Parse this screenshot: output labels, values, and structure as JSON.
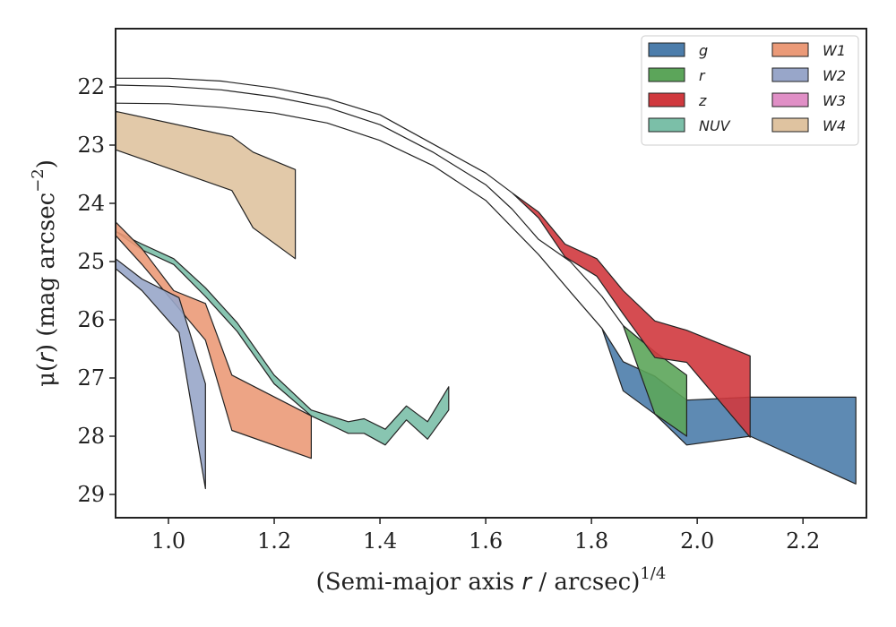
{
  "chart_data": {
    "type": "area",
    "xlabel_main": "(Semi-major axis ",
    "xlabel_var": "r",
    "xlabel_tail": " / arcsec)",
    "xlabel_exp": "1/4",
    "ylabel_mu": "μ(",
    "ylabel_var": "r",
    "ylabel_tail": ") (mag arcsec",
    "ylabel_exp": "−2",
    "ylabel_close": ")",
    "xlim": [
      0.9,
      2.32
    ],
    "ylim": [
      29.4,
      21.0
    ],
    "y_inverted": true,
    "xticks": [
      1.0,
      1.2,
      1.4,
      1.6,
      1.8,
      2.0,
      2.2
    ],
    "xtick_labels": [
      "1.0",
      "1.2",
      "1.4",
      "1.6",
      "1.8",
      "2.0",
      "2.2"
    ],
    "yticks": [
      22,
      23,
      24,
      25,
      26,
      27,
      28,
      29
    ],
    "ytick_labels": [
      "22",
      "23",
      "24",
      "25",
      "26",
      "27",
      "28",
      "29"
    ],
    "legend_position": "top-right",
    "series": [
      {
        "name": "g",
        "color": "#4c7dab",
        "upper": [
          [
            0.9,
            22.28
          ],
          [
            1.0,
            22.29
          ],
          [
            1.1,
            22.35
          ],
          [
            1.2,
            22.45
          ],
          [
            1.3,
            22.62
          ],
          [
            1.4,
            22.92
          ],
          [
            1.5,
            23.35
          ],
          [
            1.6,
            23.95
          ],
          [
            1.7,
            24.88
          ],
          [
            1.76,
            25.52
          ],
          [
            1.82,
            26.15
          ],
          [
            1.86,
            26.72
          ],
          [
            1.92,
            26.97
          ],
          [
            1.98,
            27.38
          ],
          [
            2.1,
            27.33
          ],
          [
            2.3,
            27.33
          ]
        ],
        "lower": [
          [
            0.9,
            22.28
          ],
          [
            1.0,
            22.29
          ],
          [
            1.1,
            22.35
          ],
          [
            1.2,
            22.45
          ],
          [
            1.3,
            22.62
          ],
          [
            1.4,
            22.92
          ],
          [
            1.5,
            23.35
          ],
          [
            1.6,
            23.95
          ],
          [
            1.7,
            24.88
          ],
          [
            1.76,
            25.52
          ],
          [
            1.82,
            26.15
          ],
          [
            1.86,
            27.22
          ],
          [
            1.92,
            27.62
          ],
          [
            1.98,
            28.15
          ],
          [
            2.1,
            28.0
          ],
          [
            2.3,
            28.82
          ]
        ]
      },
      {
        "name": "r",
        "color": "#5ca55a",
        "upper": [
          [
            0.9,
            21.97
          ],
          [
            1.0,
            21.99
          ],
          [
            1.1,
            22.05
          ],
          [
            1.2,
            22.17
          ],
          [
            1.3,
            22.35
          ],
          [
            1.4,
            22.65
          ],
          [
            1.5,
            23.12
          ],
          [
            1.6,
            23.68
          ],
          [
            1.65,
            24.1
          ],
          [
            1.7,
            24.62
          ],
          [
            1.76,
            25.0
          ],
          [
            1.82,
            25.6
          ],
          [
            1.86,
            26.1
          ],
          [
            1.92,
            26.55
          ],
          [
            1.98,
            26.95
          ]
        ],
        "lower": [
          [
            0.9,
            21.97
          ],
          [
            1.0,
            21.99
          ],
          [
            1.1,
            22.05
          ],
          [
            1.2,
            22.17
          ],
          [
            1.3,
            22.35
          ],
          [
            1.4,
            22.65
          ],
          [
            1.5,
            23.12
          ],
          [
            1.6,
            23.68
          ],
          [
            1.65,
            24.1
          ],
          [
            1.7,
            24.62
          ],
          [
            1.76,
            25.0
          ],
          [
            1.82,
            25.6
          ],
          [
            1.86,
            26.1
          ],
          [
            1.92,
            27.62
          ],
          [
            1.98,
            28.0
          ]
        ]
      },
      {
        "name": "z",
        "color": "#d0393e",
        "upper": [
          [
            0.9,
            21.85
          ],
          [
            1.0,
            21.85
          ],
          [
            1.1,
            21.9
          ],
          [
            1.2,
            22.02
          ],
          [
            1.3,
            22.2
          ],
          [
            1.4,
            22.48
          ],
          [
            1.5,
            22.98
          ],
          [
            1.6,
            23.48
          ],
          [
            1.65,
            23.82
          ],
          [
            1.7,
            24.15
          ],
          [
            1.75,
            24.7
          ],
          [
            1.81,
            24.95
          ],
          [
            1.86,
            25.5
          ],
          [
            1.92,
            26.02
          ],
          [
            1.98,
            26.18
          ],
          [
            2.1,
            26.62
          ]
        ],
        "lower": [
          [
            0.9,
            21.85
          ],
          [
            1.0,
            21.85
          ],
          [
            1.1,
            21.9
          ],
          [
            1.2,
            22.02
          ],
          [
            1.3,
            22.2
          ],
          [
            1.4,
            22.48
          ],
          [
            1.5,
            22.98
          ],
          [
            1.6,
            23.48
          ],
          [
            1.65,
            23.82
          ],
          [
            1.7,
            24.25
          ],
          [
            1.75,
            24.92
          ],
          [
            1.81,
            25.25
          ],
          [
            1.86,
            25.9
          ],
          [
            1.92,
            26.65
          ],
          [
            1.98,
            26.73
          ],
          [
            2.1,
            28.02
          ]
        ]
      },
      {
        "name": "NUV",
        "color": "#7bbfa8",
        "upper": [
          [
            0.9,
            24.48
          ],
          [
            0.95,
            24.7
          ],
          [
            1.01,
            24.95
          ],
          [
            1.07,
            25.45
          ],
          [
            1.13,
            26.05
          ],
          [
            1.2,
            26.95
          ],
          [
            1.27,
            27.55
          ],
          [
            1.34,
            27.75
          ],
          [
            1.37,
            27.7
          ],
          [
            1.41,
            27.88
          ],
          [
            1.45,
            27.48
          ],
          [
            1.49,
            27.75
          ],
          [
            1.53,
            27.15
          ]
        ],
        "lower": [
          [
            0.9,
            24.48
          ],
          [
            0.95,
            24.8
          ],
          [
            1.01,
            25.05
          ],
          [
            1.07,
            25.6
          ],
          [
            1.13,
            26.2
          ],
          [
            1.2,
            27.1
          ],
          [
            1.27,
            27.65
          ],
          [
            1.34,
            27.95
          ],
          [
            1.37,
            27.95
          ],
          [
            1.41,
            28.15
          ],
          [
            1.45,
            27.72
          ],
          [
            1.49,
            28.05
          ],
          [
            1.53,
            27.55
          ]
        ]
      },
      {
        "name": "W1",
        "color": "#eb9a78",
        "upper": [
          [
            0.9,
            24.32
          ],
          [
            0.95,
            24.78
          ],
          [
            1.01,
            25.5
          ],
          [
            1.07,
            25.72
          ],
          [
            1.12,
            26.95
          ],
          [
            1.27,
            27.65
          ]
        ],
        "lower": [
          [
            0.9,
            24.55
          ],
          [
            0.95,
            25.05
          ],
          [
            1.01,
            25.7
          ],
          [
            1.07,
            26.35
          ],
          [
            1.12,
            27.9
          ],
          [
            1.27,
            28.38
          ]
        ]
      },
      {
        "name": "W2",
        "color": "#98a6c9",
        "upper": [
          [
            0.9,
            24.95
          ],
          [
            0.95,
            25.3
          ],
          [
            1.02,
            25.62
          ],
          [
            1.07,
            27.1
          ]
        ],
        "lower": [
          [
            0.9,
            25.12
          ],
          [
            0.95,
            25.5
          ],
          [
            1.02,
            26.22
          ],
          [
            1.07,
            28.9
          ]
        ]
      },
      {
        "name": "W3",
        "color": "#e08fc6",
        "upper": [],
        "lower": []
      },
      {
        "name": "W4",
        "color": "#dfc3a0",
        "upper": [
          [
            0.9,
            22.42
          ],
          [
            1.12,
            22.85
          ],
          [
            1.16,
            23.12
          ],
          [
            1.24,
            23.42
          ]
        ],
        "lower": [
          [
            0.9,
            23.08
          ],
          [
            1.12,
            23.78
          ],
          [
            1.16,
            24.42
          ],
          [
            1.24,
            24.95
          ]
        ]
      }
    ]
  }
}
